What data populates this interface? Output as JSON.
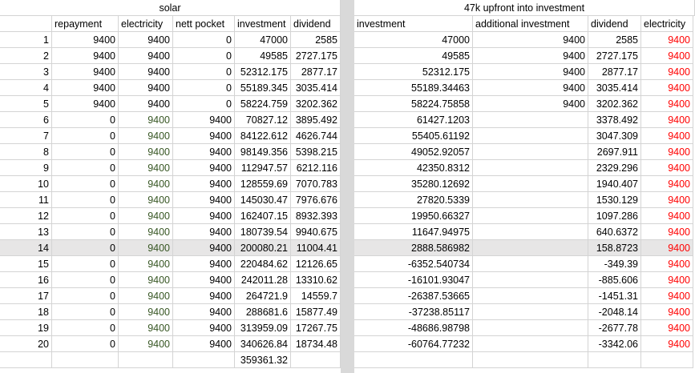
{
  "left": {
    "title": "solar",
    "headers": [
      "repayment",
      "electricity",
      "nett pocket",
      "investment",
      "dividend"
    ],
    "rows": [
      [
        "1",
        "9400",
        "9400",
        "0",
        "47000",
        "2585"
      ],
      [
        "2",
        "9400",
        "9400",
        "0",
        "49585",
        "2727.175"
      ],
      [
        "3",
        "9400",
        "9400",
        "0",
        "52312.175",
        "2877.17"
      ],
      [
        "4",
        "9400",
        "9400",
        "0",
        "55189.345",
        "3035.414"
      ],
      [
        "5",
        "9400",
        "9400",
        "0",
        "58224.759",
        "3202.362"
      ],
      [
        "6",
        "0",
        "9400",
        "9400",
        "70827.12",
        "3895.492"
      ],
      [
        "7",
        "0",
        "9400",
        "9400",
        "84122.612",
        "4626.744"
      ],
      [
        "8",
        "0",
        "9400",
        "9400",
        "98149.356",
        "5398.215"
      ],
      [
        "9",
        "0",
        "9400",
        "9400",
        "112947.57",
        "6212.116"
      ],
      [
        "10",
        "0",
        "9400",
        "9400",
        "128559.69",
        "7070.783"
      ],
      [
        "11",
        "0",
        "9400",
        "9400",
        "145030.47",
        "7976.676"
      ],
      [
        "12",
        "0",
        "9400",
        "9400",
        "162407.15",
        "8932.393"
      ],
      [
        "13",
        "0",
        "9400",
        "9400",
        "180739.54",
        "9940.675"
      ],
      [
        "14",
        "0",
        "9400",
        "9400",
        "200080.21",
        "11004.41"
      ],
      [
        "15",
        "0",
        "9400",
        "9400",
        "220484.62",
        "12126.65"
      ],
      [
        "16",
        "0",
        "9400",
        "9400",
        "242011.28",
        "13310.62"
      ],
      [
        "17",
        "0",
        "9400",
        "9400",
        "264721.9",
        "14559.7"
      ],
      [
        "18",
        "0",
        "9400",
        "9400",
        "288681.6",
        "15877.49"
      ],
      [
        "19",
        "0",
        "9400",
        "9400",
        "313959.09",
        "17267.75"
      ],
      [
        "20",
        "0",
        "9400",
        "9400",
        "340626.84",
        "18734.48"
      ]
    ],
    "final_investment": "359361.32"
  },
  "right": {
    "title": "47k upfront into investment",
    "headers": [
      "investment",
      "additional investment",
      "dividend",
      "electricity"
    ],
    "rows": [
      [
        "47000",
        "9400",
        "2585",
        "9400"
      ],
      [
        "49585",
        "9400",
        "2727.175",
        "9400"
      ],
      [
        "52312.175",
        "9400",
        "2877.17",
        "9400"
      ],
      [
        "55189.34463",
        "9400",
        "3035.414",
        "9400"
      ],
      [
        "58224.75858",
        "9400",
        "3202.362",
        "9400"
      ],
      [
        "61427.1203",
        "",
        "3378.492",
        "9400"
      ],
      [
        "55405.61192",
        "",
        "3047.309",
        "9400"
      ],
      [
        "49052.92057",
        "",
        "2697.911",
        "9400"
      ],
      [
        "42350.8312",
        "",
        "2329.296",
        "9400"
      ],
      [
        "35280.12692",
        "",
        "1940.407",
        "9400"
      ],
      [
        "27820.5339",
        "",
        "1530.129",
        "9400"
      ],
      [
        "19950.66327",
        "",
        "1097.286",
        "9400"
      ],
      [
        "11647.94975",
        "",
        "640.6372",
        "9400"
      ],
      [
        "2888.586982",
        "",
        "158.8723",
        "9400"
      ],
      [
        "-6352.540734",
        "",
        "-349.39",
        "9400"
      ],
      [
        "-16101.93047",
        "",
        "-885.606",
        "9400"
      ],
      [
        "-26387.53665",
        "",
        "-1451.31",
        "9400"
      ],
      [
        "-37238.85117",
        "",
        "-2048.14",
        "9400"
      ],
      [
        "-48686.98798",
        "",
        "-2677.78",
        "9400"
      ],
      [
        "-60764.77232",
        "",
        "-3342.06",
        "9400"
      ]
    ]
  },
  "highlighted_row": 14,
  "colors": {
    "green_text": "#375623",
    "red_text": "#ff0000",
    "highlight": "#e7e6e6",
    "grid": "#d4d4d4"
  }
}
